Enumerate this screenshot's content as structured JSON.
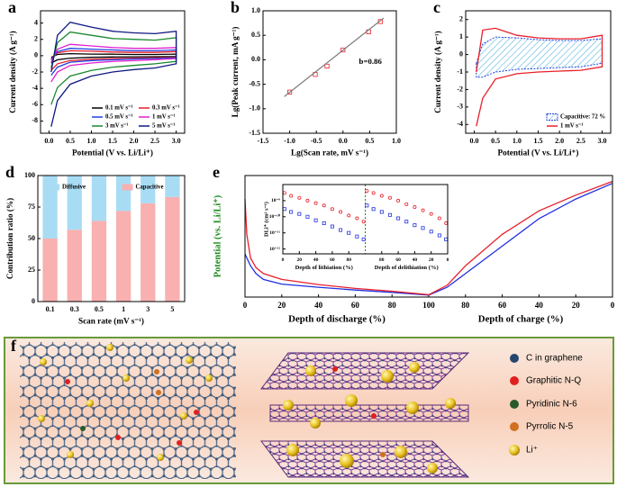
{
  "chart_data": [
    {
      "type": "line",
      "label": "a",
      "xlabel": "Potential (V vs. Li/Li⁺)",
      "ylabel": "Current density (A g⁻¹)",
      "xlim": [
        -0.2,
        3.2
      ],
      "xticks": [
        {
          "value": 0,
          "label": "0.0"
        },
        0.5,
        {
          "value": 1,
          "label": "1.0"
        },
        1.5,
        {
          "value": 2,
          "label": "2.0"
        },
        2.5,
        {
          "value": 3,
          "label": "3.0"
        }
      ],
      "ylim": [
        -9.5,
        5.5
      ],
      "yticks": [
        -8,
        -6,
        -4,
        -2,
        0,
        2,
        4
      ],
      "legend": "lower right",
      "x": [
        0.05,
        0.2,
        0.5,
        1.0,
        1.5,
        2.0,
        2.5,
        3.0,
        3.0,
        2.5,
        2.0,
        1.5,
        1.0,
        0.5,
        0.2,
        0.05
      ],
      "series": [
        {
          "name": "0.1 mV s⁻¹",
          "color": "#000000",
          "values": [
            -0.2,
            0.15,
            0.25,
            0.2,
            0.18,
            0.15,
            0.15,
            0.2,
            -0.1,
            -0.12,
            -0.14,
            -0.16,
            -0.2,
            -0.3,
            -0.5,
            -0.9
          ]
        },
        {
          "name": "0.3 mV s⁻¹",
          "color": "#e8202a",
          "values": [
            -0.4,
            0.35,
            0.6,
            0.55,
            0.45,
            0.4,
            0.4,
            0.5,
            -0.2,
            -0.25,
            -0.3,
            -0.35,
            -0.45,
            -0.6,
            -1.0,
            -1.8
          ]
        },
        {
          "name": "0.5 mV s⁻¹",
          "color": "#2040e0",
          "values": [
            -0.5,
            0.5,
            0.9,
            0.8,
            0.7,
            0.6,
            0.6,
            0.7,
            -0.25,
            -0.35,
            -0.4,
            -0.5,
            -0.6,
            -0.8,
            -1.4,
            -2.4
          ]
        },
        {
          "name": "1 mV s⁻¹",
          "color": "#e020d0",
          "values": [
            -0.8,
            0.8,
            1.4,
            1.2,
            1.0,
            0.9,
            0.9,
            1.0,
            -0.35,
            -0.5,
            -0.6,
            -0.7,
            -0.9,
            -1.2,
            -2.0,
            -3.2
          ]
        },
        {
          "name": "3 mV s⁻¹",
          "color": "#188a30",
          "values": [
            -1.5,
            1.6,
            2.9,
            2.5,
            2.1,
            2.0,
            1.9,
            2.2,
            -0.7,
            -1.0,
            -1.2,
            -1.4,
            -1.8,
            -2.5,
            -3.9,
            -6.0
          ]
        },
        {
          "name": "5 mV s⁻¹",
          "color": "#101880",
          "values": [
            -2.0,
            2.5,
            4.1,
            3.5,
            3.0,
            2.8,
            2.7,
            3.0,
            -1.0,
            -1.5,
            -1.7,
            -2.0,
            -2.5,
            -3.5,
            -5.5,
            -8.7
          ]
        }
      ]
    },
    {
      "type": "scatter",
      "label": "b",
      "xlabel": "Lg(Scan rate, mV s⁻¹)",
      "ylabel": "Lg(Peak current, mA g⁻¹)",
      "xlim": [
        -1.5,
        1.0
      ],
      "xticks": [
        -1.5,
        {
          "value": -1,
          "label": "-1.0"
        },
        -0.5,
        {
          "value": 0,
          "label": "0.0"
        },
        0.5,
        {
          "value": 1,
          "label": "1.0"
        }
      ],
      "ylim": [
        -1.5,
        1.0
      ],
      "yticks": [
        -1.5,
        {
          "value": -1,
          "label": "-1.0"
        },
        -0.5,
        {
          "value": 0,
          "label": "0.0"
        },
        0.5,
        {
          "value": 1,
          "label": "1.0"
        }
      ],
      "x": [
        -1.0,
        -0.52,
        -0.3,
        0.0,
        0.48,
        0.7
      ],
      "series": [
        {
          "color": "#e8202a",
          "marker": "square",
          "values": [
            -0.66,
            -0.3,
            -0.13,
            0.2,
            0.57,
            0.78
          ]
        }
      ],
      "fit": {
        "color": "#808080",
        "x": [
          -1.1,
          0.76
        ],
        "values": [
          -0.75,
          0.85
        ]
      },
      "annotation": "b=0.86"
    },
    {
      "type": "line",
      "label": "c",
      "xlabel": "Potential (V vs. Li/Li⁺)",
      "ylabel": "Current density (A g⁻¹)",
      "xlim": [
        -0.2,
        3.2
      ],
      "xticks": [
        {
          "value": 0,
          "label": "0.0"
        },
        0.5,
        {
          "value": 1,
          "label": "1.0"
        },
        1.5,
        {
          "value": 2,
          "label": "2.0"
        },
        2.5,
        {
          "value": 3,
          "label": "3.0"
        }
      ],
      "ylim": [
        -4.5,
        2.5
      ],
      "yticks": [
        -4,
        -3,
        -2,
        -1,
        0,
        1,
        2
      ],
      "legend": "lower right",
      "x": [
        0.05,
        0.2,
        0.5,
        1.0,
        1.5,
        2.0,
        2.5,
        3.0,
        3.0,
        2.5,
        2.0,
        1.5,
        1.0,
        0.5,
        0.2,
        0.05
      ],
      "series": [
        {
          "name": "Capacitive:  72 %",
          "color": "#2040e0",
          "hatch": true,
          "values": [
            -0.5,
            0.6,
            1.0,
            0.95,
            0.85,
            0.8,
            0.8,
            0.9,
            -0.5,
            -0.7,
            -0.75,
            -0.8,
            -0.85,
            -1.0,
            -1.3,
            -1.3
          ]
        },
        {
          "name": "1 mV s⁻¹",
          "color": "#e8202a",
          "values": [
            -1.0,
            1.4,
            1.5,
            1.1,
            0.95,
            0.9,
            0.9,
            1.1,
            -0.7,
            -0.9,
            -0.95,
            -1.0,
            -1.1,
            -1.4,
            -2.5,
            -4.1
          ]
        }
      ]
    },
    {
      "type": "bar",
      "label": "d",
      "xlabel": "Scan rate (mV s⁻¹)",
      "ylabel": "Contribution ratio (%)",
      "stacked": true,
      "categories": [
        "0.1",
        "0.3",
        "0.5",
        "1",
        "3",
        "5"
      ],
      "ylim": [
        0,
        100
      ],
      "yticks": [
        0,
        25,
        50,
        75,
        100
      ],
      "legend": "top",
      "series": [
        {
          "name": "Diffusive",
          "color": "#a8dcf4",
          "values": [
            50,
            43,
            36,
            28,
            22,
            17
          ]
        },
        {
          "name": "Capacitive",
          "color": "#f8b0b0",
          "values": [
            50,
            57,
            64,
            72,
            78,
            83
          ]
        }
      ]
    },
    {
      "type": "line",
      "label": "e",
      "xlabel": [
        "Depth of discharge (%)",
        "Depth of charge (%)"
      ],
      "ylabel": "Potential (vs. Li/Li⁺)",
      "ylabel_color": "#1a8a1a",
      "xlim": [
        0,
        200
      ],
      "xticks": [
        0,
        20,
        40,
        60,
        80,
        100,
        {
          "value": 120,
          "label": "80"
        },
        {
          "value": 140,
          "label": "60"
        },
        {
          "value": 160,
          "label": "40"
        },
        {
          "value": 180,
          "label": "20"
        },
        {
          "value": 200,
          "label": "0"
        }
      ],
      "ylim": [
        0,
        3.1
      ],
      "x": [
        0,
        1,
        3,
        6,
        10,
        20,
        40,
        60,
        80,
        100,
        110,
        120,
        140,
        160,
        180,
        200
      ],
      "series": [
        {
          "color": "#2030e0",
          "values": [
            1.1,
            1.0,
            0.8,
            0.6,
            0.45,
            0.33,
            0.25,
            0.18,
            0.12,
            0.05,
            0.25,
            0.6,
            1.3,
            2.0,
            2.5,
            2.9
          ]
        },
        {
          "color": "#e8202a",
          "values": [
            2.5,
            1.6,
            1.0,
            0.75,
            0.6,
            0.45,
            0.32,
            0.22,
            0.15,
            0.06,
            0.3,
            0.8,
            1.6,
            2.2,
            2.6,
            2.95
          ]
        }
      ]
    },
    {
      "type": "scatter",
      "xlabel": [
        "Depth of lithiation (%)",
        "Depth of delithiation (%)"
      ],
      "ylabel": "DLi⁺ (cm² s⁻¹)",
      "ylog": true,
      "xlim": [
        0,
        200
      ],
      "xticks": [
        0,
        20,
        40,
        60,
        80,
        {
          "value": 120,
          "label": "80"
        },
        {
          "value": 140,
          "label": "60"
        },
        {
          "value": 160,
          "label": "40"
        },
        {
          "value": 180,
          "label": "20"
        },
        {
          "value": 200,
          "label": "0"
        }
      ],
      "ylim": [
        5e-13,
        1e-08
      ],
      "yticks": [
        {
          "value": 1e-09,
          "label": "10⁻⁹"
        },
        {
          "value": 1e-10,
          "label": "10⁻¹⁰"
        },
        {
          "value": 1e-11,
          "label": "10⁻¹¹"
        },
        {
          "value": 1e-12,
          "label": "10⁻¹²"
        }
      ],
      "x": [
        2,
        10,
        20,
        30,
        40,
        50,
        60,
        70,
        80,
        90,
        98,
        102,
        110,
        120,
        130,
        140,
        150,
        160,
        170,
        180,
        190,
        198
      ],
      "series": [
        {
          "color": "#e8202a",
          "marker": "circle",
          "values": [
            3e-09,
            2e-09,
            1.5e-09,
            1e-09,
            7e-10,
            5e-10,
            3e-10,
            2e-10,
            1.2e-10,
            8e-11,
            5e-11,
            4e-09,
            3e-09,
            2e-09,
            1.5e-09,
            1e-09,
            6e-10,
            4e-10,
            2.5e-10,
            1.5e-10,
            8e-11,
            4e-11
          ]
        },
        {
          "color": "#2030e0",
          "marker": "square",
          "values": [
            3e-10,
            2e-10,
            1.5e-10,
            1e-10,
            6e-11,
            4e-11,
            2.5e-11,
            1.5e-11,
            1e-11,
            6e-12,
            4e-12,
            5e-10,
            3e-10,
            2e-10,
            1.3e-10,
            8e-11,
            5e-11,
            3e-11,
            2e-11,
            1.2e-11,
            7e-12,
            4e-12
          ]
        }
      ]
    }
  ],
  "schematic": {
    "label": "f",
    "legend": [
      "C in graphene",
      "Graphitic N-Q",
      "Pyridinic N-6",
      "Pyrrolic N-5",
      "Li⁺"
    ]
  }
}
